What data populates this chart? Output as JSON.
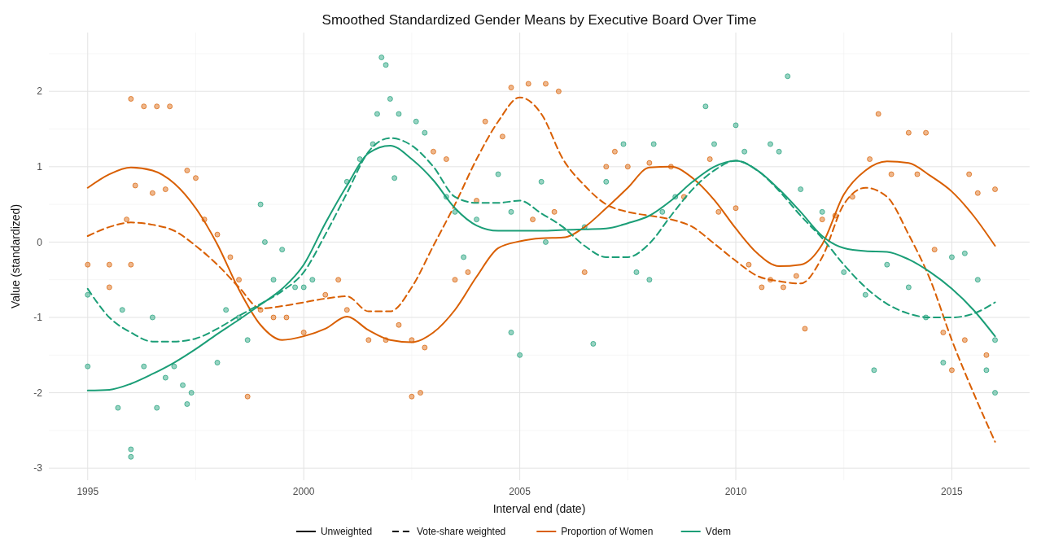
{
  "chart_data": {
    "type": "line",
    "title": "Smoothed Standardized Gender Means by Executive Board Over Time",
    "xlabel": "Interval end (date)",
    "ylabel": "Value (standardized)",
    "annotations": [
      "Unweighted",
      "Vote-share weighted"
    ],
    "xlim": [
      1994.1,
      2016.8
    ],
    "ylim": [
      -3.16,
      2.78
    ],
    "xticks": [
      1995,
      2000,
      2005,
      2010,
      2015
    ],
    "yticks": [
      -3,
      -2,
      -1,
      0,
      1,
      2
    ],
    "grid": true,
    "legend": "bottom",
    "x": [
      1995,
      1995.5,
      1996,
      1996.5,
      1997,
      1997.5,
      1998,
      1998.5,
      1999,
      1999.5,
      2000,
      2000.5,
      2001,
      2001.5,
      2002,
      2002.5,
      2003,
      2003.5,
      2004,
      2004.5,
      2005,
      2005.5,
      2006,
      2006.5,
      2007,
      2007.5,
      2008,
      2008.5,
      2009,
      2009.5,
      2010,
      2010.5,
      2011,
      2011.5,
      2012,
      2012.5,
      2013,
      2013.5,
      2014,
      2014.5,
      2015,
      2015.5,
      2016
    ],
    "series": [
      {
        "type": "scatter",
        "color": "#d95f02",
        "marker": "circle",
        "x": [
          1996,
          1996.3,
          1996.6,
          1996.9,
          1996.1,
          1996.5,
          1996.8,
          1997.3,
          1997.5,
          1995.9,
          1996,
          1995.5,
          1995,
          1995.5,
          1997.7,
          1998,
          1998.3,
          1998.5,
          1999,
          1998.7,
          1999.3,
          1999.6,
          2000,
          2000.5,
          2000.8,
          2001,
          2001.5,
          2001.9,
          2002.2,
          2002.5,
          2002.8,
          2002.5,
          2002.7,
          2003,
          2003.3,
          2003.5,
          2003.8,
          2004,
          2004.2,
          2004.6,
          2004.8,
          2005.2,
          2005.6,
          2005.9,
          2005.3,
          2005.8,
          2006.5,
          2007,
          2007.2,
          2007.5,
          2008,
          2008.5,
          2008.8,
          2009.4,
          2009.6,
          2010,
          2010.3,
          2010.8,
          2011.1,
          2011.4,
          2010.6,
          2011.6,
          2012,
          2012.3,
          2012.7,
          2013.1,
          2013.3,
          2013.6,
          2014,
          2014.4,
          2014.2,
          2014.6,
          2014.8,
          2015,
          2015.3,
          2015.6,
          2015.8,
          2016,
          2015.4
        ],
        "values": [
          1.9,
          1.8,
          1.8,
          1.8,
          0.75,
          0.65,
          0.7,
          0.95,
          0.85,
          0.3,
          -0.3,
          -0.3,
          -0.3,
          -0.6,
          0.3,
          0.1,
          -0.2,
          -0.5,
          -0.9,
          -2.05,
          -1.0,
          -1.0,
          -1.2,
          -0.7,
          -0.5,
          -0.9,
          -1.3,
          -1.3,
          -1.1,
          -1.3,
          -1.4,
          -2.05,
          -2.0,
          1.2,
          1.1,
          -0.5,
          -0.4,
          0.55,
          1.6,
          1.4,
          2.05,
          2.1,
          2.1,
          2.0,
          0.3,
          0.4,
          -0.4,
          1.0,
          1.2,
          1.0,
          1.05,
          1.0,
          0.6,
          1.1,
          0.4,
          0.45,
          -0.3,
          -0.5,
          -0.6,
          -0.45,
          -0.6,
          -1.15,
          0.3,
          0.35,
          0.6,
          1.1,
          1.7,
          0.9,
          1.45,
          1.45,
          0.9,
          -0.1,
          -1.2,
          -1.7,
          -1.3,
          0.65,
          -1.5,
          0.7,
          0.9
        ]
      },
      {
        "type": "scatter",
        "color": "#1b9e77",
        "marker": "circle",
        "x": [
          1995,
          1995,
          1995.7,
          1996,
          1996,
          1995.8,
          1996.5,
          1996.3,
          1996.6,
          1996.8,
          1997,
          1997.2,
          1997.4,
          1997.3,
          1998,
          1998.2,
          1998.5,
          1998.7,
          1999,
          1999.1,
          1999.3,
          1999.5,
          1999.8,
          2000,
          2000.2,
          2001,
          2001.3,
          2001.6,
          2001.7,
          2001.8,
          2001.9,
          2002,
          2002.2,
          2002.1,
          2002.6,
          2002.8,
          2003.3,
          2003.5,
          2003.7,
          2004,
          2004.5,
          2004.8,
          2004.8,
          2005,
          2005.5,
          2005.6,
          2006.5,
          2006.7,
          2007,
          2007.4,
          2007.7,
          2008,
          2008.1,
          2008.3,
          2008.6,
          2009.3,
          2009.5,
          2010,
          2010.2,
          2010.8,
          2011,
          2011.2,
          2011.5,
          2012,
          2012.5,
          2013,
          2013.2,
          2013.5,
          2014,
          2014.4,
          2014.8,
          2015,
          2015.3,
          2015.6,
          2015.8,
          2016,
          2016
        ],
        "values": [
          -1.65,
          -0.7,
          -2.2,
          -2.75,
          -2.85,
          -0.9,
          -1.0,
          -1.65,
          -2.2,
          -1.8,
          -1.65,
          -1.9,
          -2.0,
          -2.15,
          -1.6,
          -0.9,
          -1.0,
          -1.3,
          0.5,
          0.0,
          -0.5,
          -0.1,
          -0.6,
          -0.6,
          -0.5,
          0.8,
          1.1,
          1.3,
          1.7,
          2.45,
          2.35,
          1.9,
          1.7,
          0.85,
          1.6,
          1.45,
          0.6,
          0.4,
          -0.2,
          0.3,
          0.9,
          -1.2,
          0.4,
          -1.5,
          0.8,
          0.0,
          0.2,
          -1.35,
          0.8,
          1.3,
          -0.4,
          -0.5,
          1.3,
          0.4,
          0.6,
          1.8,
          1.3,
          1.55,
          1.2,
          1.3,
          1.2,
          2.2,
          0.7,
          0.4,
          -0.4,
          -0.7,
          -1.7,
          -0.3,
          -0.6,
          -1.0,
          -1.6,
          -0.2,
          -0.15,
          -0.5,
          -1.7,
          -2.0,
          -1.3
        ]
      },
      {
        "name": "Proportion of Women",
        "color": "#d95f02",
        "line_style": "solid",
        "values": [
          0.72,
          0.9,
          0.99,
          0.95,
          0.78,
          0.45,
          -0.03,
          -0.63,
          -1.1,
          -1.3,
          -1.25,
          -1.15,
          -0.99,
          -1.17,
          -1.3,
          -1.33,
          -1.2,
          -0.9,
          -0.46,
          -0.08,
          0.01,
          0.05,
          0.06,
          0.2,
          0.45,
          0.72,
          0.99,
          1.0,
          0.85,
          0.56,
          0.18,
          -0.15,
          -0.32,
          -0.3,
          -0.03,
          0.63,
          0.95,
          1.07,
          1.05,
          0.88,
          0.67,
          0.35,
          -0.05
        ]
      },
      {
        "color": "#d95f02",
        "line_style": "dashed",
        "values": [
          0.08,
          0.2,
          0.26,
          0.23,
          0.15,
          -0.05,
          -0.3,
          -0.6,
          -0.88,
          -0.85,
          -0.8,
          -0.75,
          -0.72,
          -0.92,
          -0.92,
          -0.6,
          -0.05,
          0.5,
          1.1,
          1.6,
          1.92,
          1.7,
          1.1,
          0.75,
          0.5,
          0.4,
          0.35,
          0.3,
          0.2,
          -0.02,
          -0.25,
          -0.45,
          -0.52,
          -0.55,
          -0.2,
          0.5,
          0.72,
          0.6,
          0.1,
          -0.5,
          -1.3,
          -2.0,
          -2.65
        ]
      },
      {
        "name": "Vdem",
        "color": "#1b9e77",
        "line_style": "solid",
        "values": [
          -1.97,
          -1.96,
          -1.88,
          -1.75,
          -1.6,
          -1.42,
          -1.22,
          -1.03,
          -0.83,
          -0.62,
          -0.3,
          0.25,
          0.75,
          1.18,
          1.28,
          1.1,
          0.82,
          0.45,
          0.22,
          0.15,
          0.15,
          0.15,
          0.16,
          0.17,
          0.18,
          0.25,
          0.35,
          0.55,
          0.8,
          1.0,
          1.08,
          0.95,
          0.7,
          0.4,
          0.08,
          -0.08,
          -0.12,
          -0.13,
          -0.23,
          -0.4,
          -0.62,
          -0.9,
          -1.25
        ]
      },
      {
        "color": "#1b9e77",
        "line_style": "dashed",
        "values": [
          -0.62,
          -1.0,
          -1.2,
          -1.32,
          -1.32,
          -1.28,
          -1.15,
          -0.98,
          -0.82,
          -0.65,
          -0.4,
          0.1,
          0.65,
          1.2,
          1.38,
          1.28,
          1.0,
          0.6,
          0.52,
          0.52,
          0.55,
          0.38,
          0.2,
          -0.05,
          -0.2,
          -0.2,
          -0.02,
          0.35,
          0.7,
          0.95,
          1.08,
          0.95,
          0.68,
          0.35,
          0.05,
          -0.3,
          -0.6,
          -0.82,
          -0.95,
          -1.0,
          -1.0,
          -0.95,
          -0.8
        ]
      }
    ]
  }
}
